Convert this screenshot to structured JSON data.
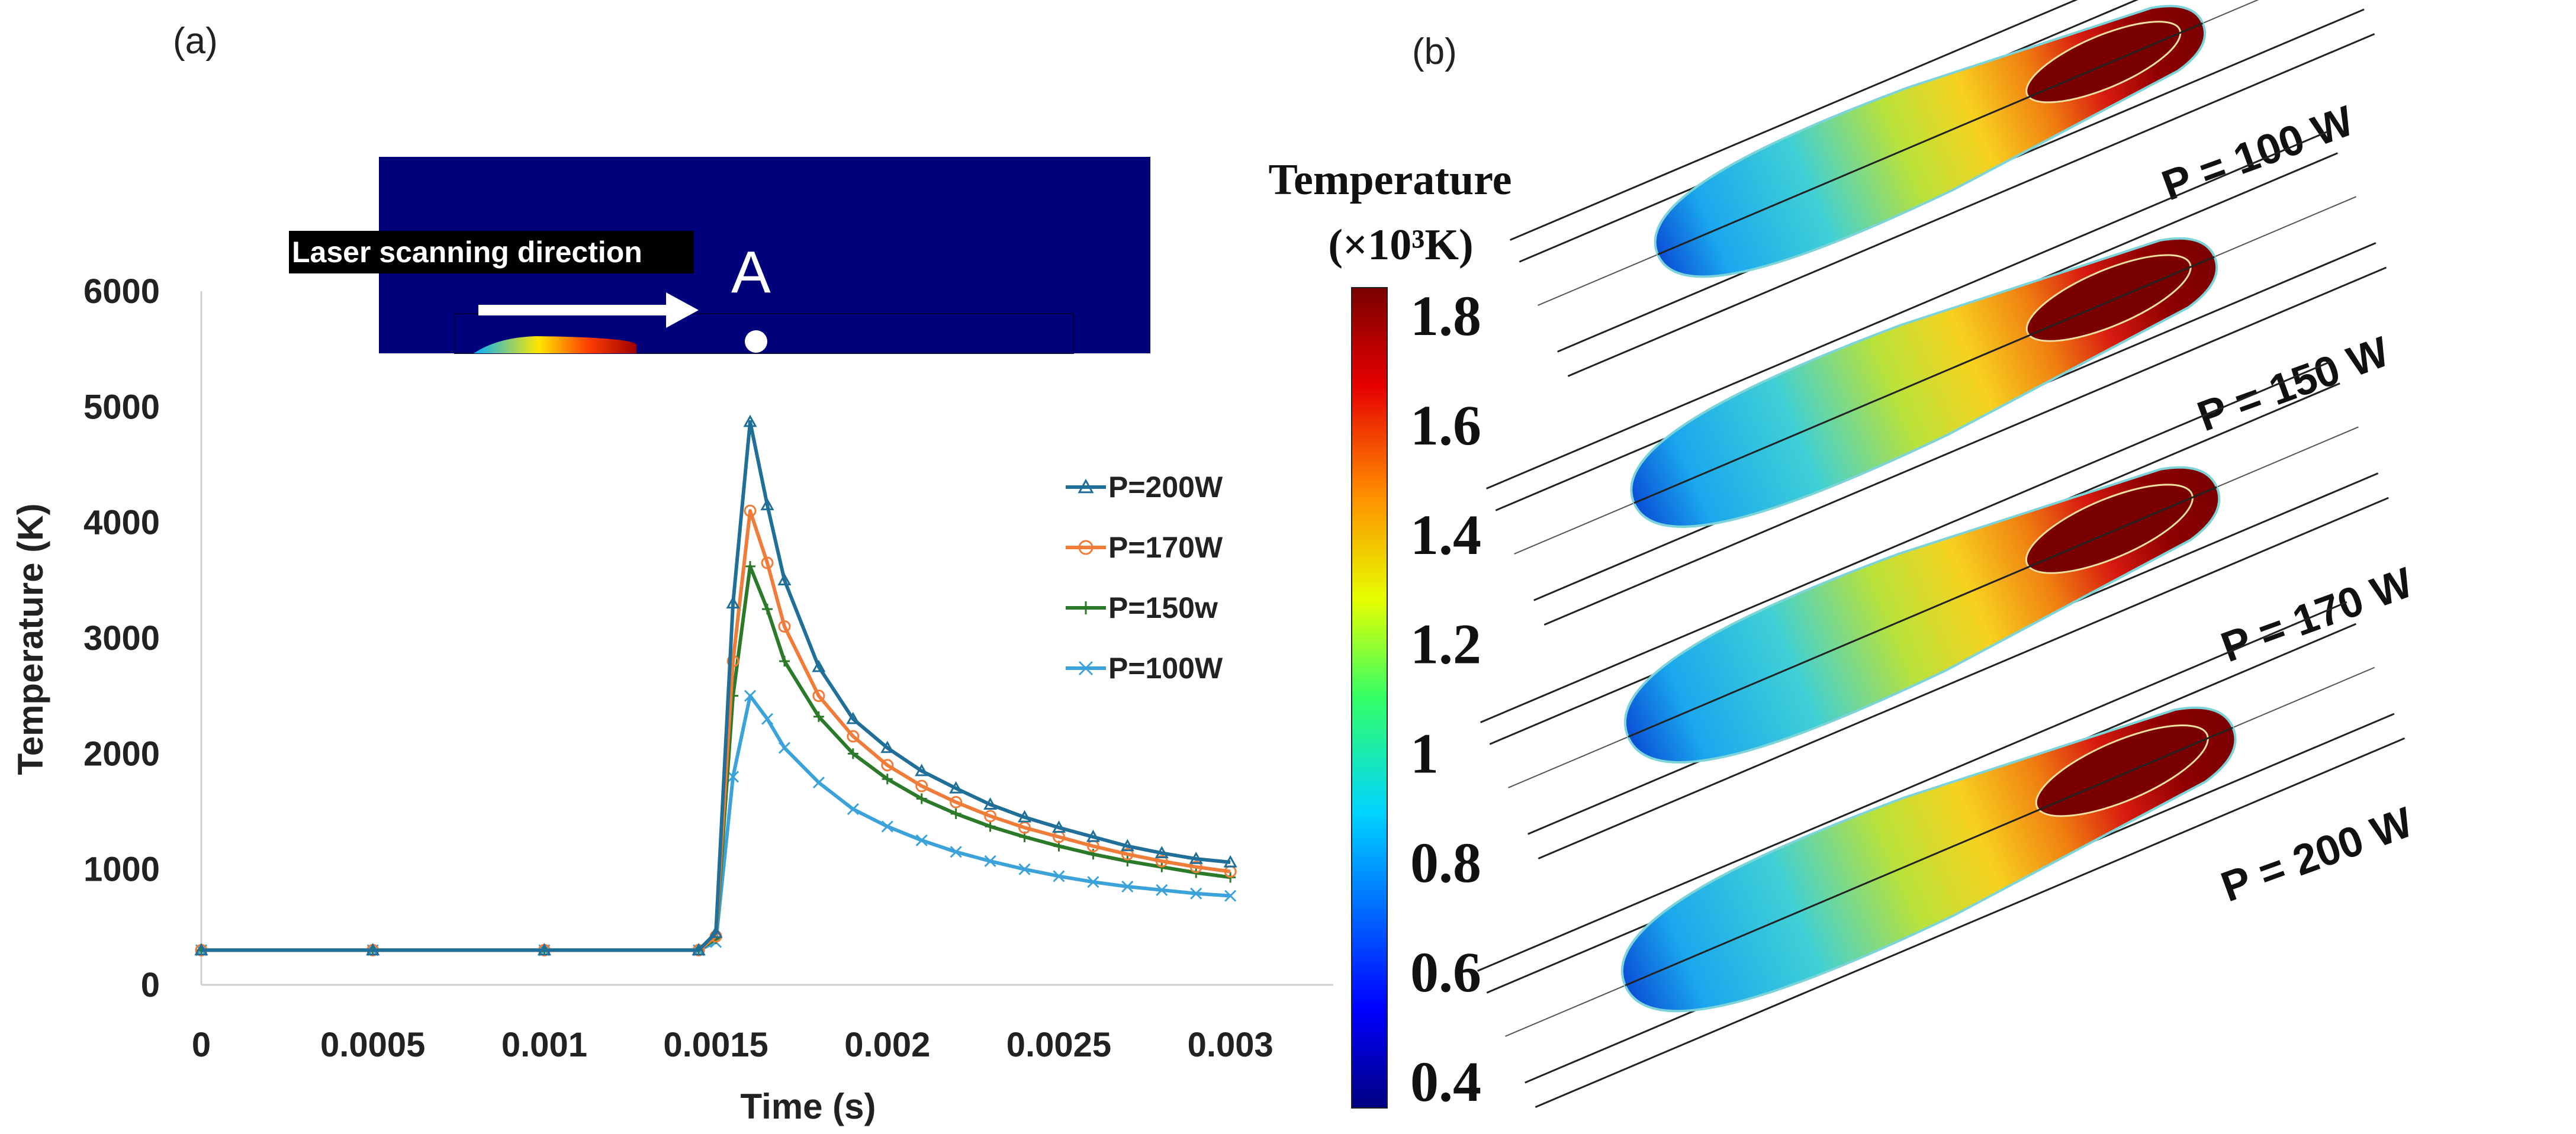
{
  "panel_a_label": "(a)",
  "panel_b_label": "(b)",
  "inset": {
    "caption": "Laser scanning direction",
    "point_label": "A"
  },
  "chart_data": {
    "type": "line",
    "xlabel": "Time (s)",
    "ylabel": "Temperature (K)",
    "xlim": [
      0,
      0.0033
    ],
    "ylim": [
      0,
      6000
    ],
    "x_ticks": [
      0,
      0.0005,
      0.001,
      0.0015,
      0.002,
      0.0025,
      0.003
    ],
    "x_tick_labels": [
      "0",
      "0.0005",
      "0.001",
      "0.0015",
      "0.002",
      "0.0025",
      "0.003"
    ],
    "y_ticks": [
      0,
      1000,
      2000,
      3000,
      4000,
      5000,
      6000
    ],
    "y_tick_labels": [
      "0",
      "1000",
      "2000",
      "3000",
      "4000",
      "5000",
      "6000"
    ],
    "grid": false,
    "legend_position": "right",
    "series": [
      {
        "name": "P=200W",
        "color": "#1f6f99",
        "marker": "triangle",
        "x": [
          0,
          0.0005,
          0.001,
          0.00145,
          0.0015,
          0.00155,
          0.0016,
          0.00165,
          0.0017,
          0.0018,
          0.0019,
          0.002,
          0.0021,
          0.0022,
          0.0023,
          0.0024,
          0.0025,
          0.0026,
          0.0027,
          0.0028,
          0.0029,
          0.003
        ],
        "y": [
          300,
          300,
          300,
          300,
          450,
          3300,
          4870,
          4150,
          3500,
          2750,
          2300,
          2050,
          1850,
          1700,
          1560,
          1450,
          1360,
          1280,
          1200,
          1140,
          1090,
          1060
        ]
      },
      {
        "name": "P=170W",
        "color": "#f07c3a",
        "marker": "circle",
        "x": [
          0,
          0.0005,
          0.001,
          0.00145,
          0.0015,
          0.00155,
          0.0016,
          0.00165,
          0.0017,
          0.0018,
          0.0019,
          0.002,
          0.0021,
          0.0022,
          0.0023,
          0.0024,
          0.0025,
          0.0026,
          0.0027,
          0.0028,
          0.0029,
          0.003
        ],
        "y": [
          300,
          300,
          300,
          300,
          420,
          2800,
          4100,
          3650,
          3100,
          2500,
          2150,
          1900,
          1720,
          1580,
          1460,
          1360,
          1280,
          1200,
          1130,
          1070,
          1020,
          980
        ]
      },
      {
        "name": "P=150w",
        "color": "#2a7a2a",
        "marker": "plus",
        "x": [
          0,
          0.0005,
          0.001,
          0.00145,
          0.0015,
          0.00155,
          0.0016,
          0.00165,
          0.0017,
          0.0018,
          0.0019,
          0.002,
          0.0021,
          0.0022,
          0.0023,
          0.0024,
          0.0025,
          0.0026,
          0.0027,
          0.0028,
          0.0029,
          0.003
        ],
        "y": [
          300,
          300,
          300,
          300,
          400,
          2500,
          3620,
          3250,
          2800,
          2320,
          2000,
          1780,
          1610,
          1480,
          1370,
          1280,
          1200,
          1130,
          1070,
          1020,
          970,
          930
        ]
      },
      {
        "name": "P=100W",
        "color": "#3ba3d9",
        "marker": "cross",
        "x": [
          0,
          0.0005,
          0.001,
          0.00145,
          0.0015,
          0.00155,
          0.0016,
          0.00165,
          0.0017,
          0.0018,
          0.0019,
          0.002,
          0.0021,
          0.0022,
          0.0023,
          0.0024,
          0.0025,
          0.0026,
          0.0027,
          0.0028,
          0.0029,
          0.003
        ],
        "y": [
          300,
          300,
          300,
          300,
          370,
          1800,
          2500,
          2300,
          2050,
          1750,
          1520,
          1370,
          1250,
          1150,
          1070,
          1000,
          940,
          890,
          850,
          820,
          790,
          770
        ]
      }
    ]
  },
  "colorbar": {
    "title_line1": "Temperature",
    "title_line2": "(×10³K)",
    "min": 0.35,
    "max": 1.85,
    "tick_values": [
      1.8,
      1.6,
      1.4,
      1.2,
      1,
      0.8,
      0.6,
      0.4
    ],
    "tick_labels": [
      "1.8",
      "1.6",
      "1.4",
      "1.2",
      "1",
      "0.8",
      "0.6",
      "0.4"
    ]
  },
  "melt_pools": [
    {
      "label": "P = 100 W",
      "power": 100
    },
    {
      "label": "P = 150 W",
      "power": 150
    },
    {
      "label": "P = 170 W",
      "power": 170
    },
    {
      "label": "P = 200 W",
      "power": 200
    }
  ]
}
